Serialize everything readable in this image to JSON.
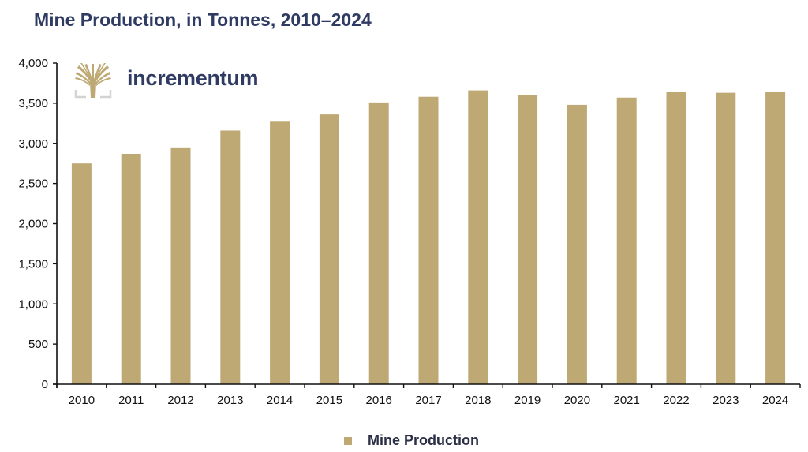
{
  "header": {
    "title": "Mine Production, in Tonnes, 2010–2024"
  },
  "logo": {
    "wordmark": "incrementum",
    "icon": "tree-icon"
  },
  "colors": {
    "bar": "#bea874",
    "title": "#2f3b62",
    "axis": "#111111",
    "logo_gray": "#d3d3d3"
  },
  "chart_data": {
    "type": "bar",
    "title": "Mine Production, in Tonnes, 2010–2024",
    "xlabel": "",
    "ylabel": "",
    "categories": [
      "2010",
      "2011",
      "2012",
      "2013",
      "2014",
      "2015",
      "2016",
      "2017",
      "2018",
      "2019",
      "2020",
      "2021",
      "2022",
      "2023",
      "2024"
    ],
    "series": [
      {
        "name": "Mine Production",
        "values": [
          2750,
          2870,
          2950,
          3160,
          3270,
          3360,
          3510,
          3580,
          3660,
          3600,
          3480,
          3570,
          3640,
          3630,
          3640
        ]
      }
    ],
    "ylim": [
      0,
      4000
    ],
    "yticks": [
      0,
      500,
      1000,
      1500,
      2000,
      2500,
      3000,
      3500,
      4000
    ],
    "ytick_labels": [
      "0",
      "500",
      "1,000",
      "1,500",
      "2,000",
      "2,500",
      "3,000",
      "3,500",
      "4,000"
    ],
    "grid": false,
    "legend": {
      "position": "bottom-center",
      "entries": [
        "Mine Production"
      ]
    }
  }
}
